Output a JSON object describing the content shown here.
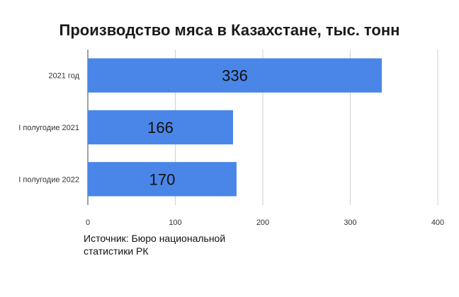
{
  "chart_data": {
    "type": "bar",
    "orientation": "horizontal",
    "title": "Производство мяса в Казахстане, тыс. тонн",
    "categories": [
      "2021 год",
      "I полугодие 2021",
      "I полугодие 2022"
    ],
    "values": [
      336,
      166,
      170
    ],
    "data_labels": [
      "336",
      "166",
      "170"
    ],
    "xlim": [
      0,
      400
    ],
    "x_ticks": [
      0,
      100,
      200,
      300,
      400
    ],
    "grid": "vertical",
    "bar_color": "#4a86e8",
    "source": "Источник: Бюро национальной статистики РК"
  }
}
